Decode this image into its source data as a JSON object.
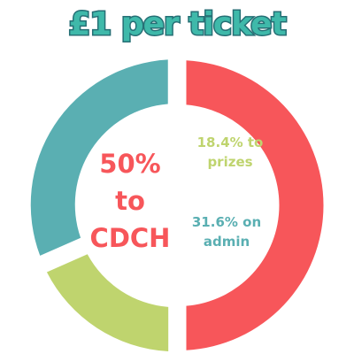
{
  "chart_data": {
    "type": "pie",
    "title": "£1 per ticket",
    "slices": [
      {
        "label": "to CDCH",
        "value": 50,
        "display_value": "50%",
        "display_label": "to",
        "display_label2": "CDCH",
        "color": "#f7565a"
      },
      {
        "label": "to prizes",
        "value": 18.4,
        "display_value": "18.4% to",
        "display_label": "prizes",
        "color": "#bfd46e"
      },
      {
        "label": "on admin",
        "value": 31.6,
        "display_value": "31.6% on",
        "display_label": "admin",
        "color": "#5aafb2"
      }
    ],
    "donut": true,
    "title_color": "#3fb9aa",
    "title_outline_color": "#266f75"
  }
}
